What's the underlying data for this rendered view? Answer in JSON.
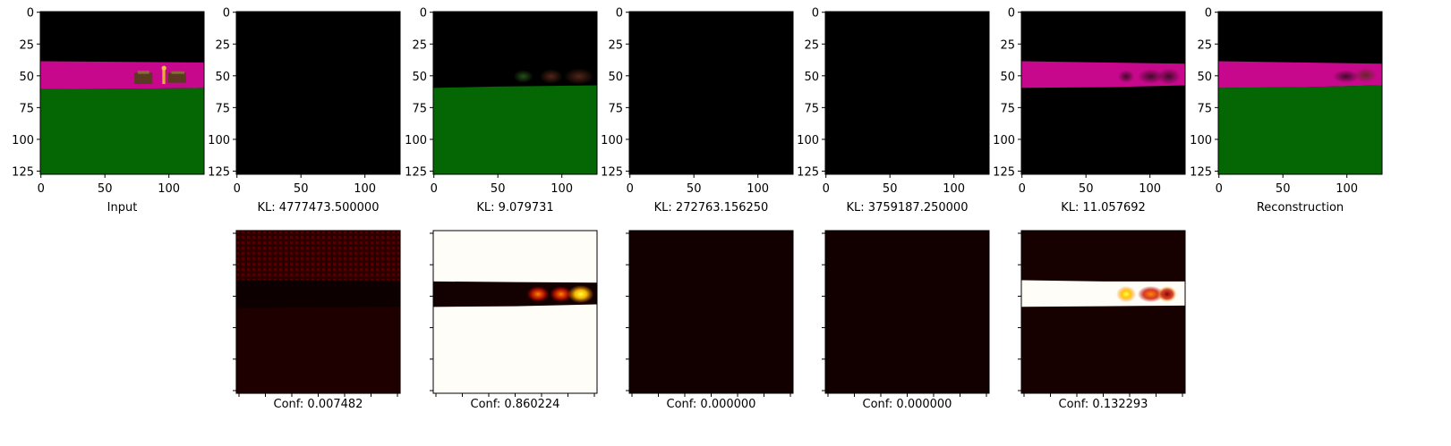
{
  "figure": {
    "top_row_tick_values": [
      0,
      25,
      50,
      75,
      100,
      125
    ],
    "top_row_x_tick_values": [
      0,
      50,
      100
    ],
    "image_extent": [
      -0.5,
      127.5
    ]
  },
  "panels_top": [
    {
      "id": "input",
      "label": "Input",
      "scene": "full"
    },
    {
      "id": "slot1",
      "label": "KL: 4777473.500000",
      "scene": "black"
    },
    {
      "id": "slot2",
      "label": "KL: 9.079731",
      "scene": "green_only"
    },
    {
      "id": "slot3",
      "label": "KL: 272763.156250",
      "scene": "black"
    },
    {
      "id": "slot4",
      "label": "KL: 3759187.250000",
      "scene": "black"
    },
    {
      "id": "slot5",
      "label": "KL: 11.057692",
      "scene": "band_only"
    },
    {
      "id": "reconstruction",
      "label": "Reconstruction",
      "scene": "recon"
    }
  ],
  "panels_bottom": [
    {
      "id": "conf1",
      "label": "Conf: 0.007482",
      "scene": "heat_dim"
    },
    {
      "id": "conf2",
      "label": "Conf: 0.860224",
      "scene": "heat_inverse"
    },
    {
      "id": "conf3",
      "label": "Conf: 0.000000",
      "scene": "heat_zero"
    },
    {
      "id": "conf4",
      "label": "Conf: 0.000000",
      "scene": "heat_zero"
    },
    {
      "id": "conf5",
      "label": "Conf: 0.132293",
      "scene": "heat_band"
    }
  ],
  "colors": {
    "magenta_band": "#c8088c",
    "green_floor": "#046704",
    "black": "#000000",
    "heat_dark": "#130000",
    "heat_white": "#fffdf8"
  },
  "chart_data": [
    {
      "type": "image",
      "title": "",
      "xlabel": "Input",
      "xlim": [
        0,
        127
      ],
      "ylim": [
        127,
        0
      ]
    },
    {
      "type": "image",
      "title": "",
      "xlabel": "KL: 4777473.500000",
      "xlim": [
        0,
        127
      ],
      "ylim": [
        127,
        0
      ]
    },
    {
      "type": "image",
      "title": "",
      "xlabel": "KL: 9.079731",
      "xlim": [
        0,
        127
      ],
      "ylim": [
        127,
        0
      ]
    },
    {
      "type": "image",
      "title": "",
      "xlabel": "KL: 272763.156250",
      "xlim": [
        0,
        127
      ],
      "ylim": [
        127,
        0
      ]
    },
    {
      "type": "image",
      "title": "",
      "xlabel": "KL: 3759187.250000",
      "xlim": [
        0,
        127
      ],
      "ylim": [
        127,
        0
      ]
    },
    {
      "type": "image",
      "title": "",
      "xlabel": "KL: 11.057692",
      "xlim": [
        0,
        127
      ],
      "ylim": [
        127,
        0
      ]
    },
    {
      "type": "image",
      "title": "",
      "xlabel": "Reconstruction",
      "xlim": [
        0,
        127
      ],
      "ylim": [
        127,
        0
      ]
    },
    {
      "type": "heatmap",
      "title": "",
      "xlabel": "Conf: 0.007482"
    },
    {
      "type": "heatmap",
      "title": "",
      "xlabel": "Conf: 0.860224"
    },
    {
      "type": "heatmap",
      "title": "",
      "xlabel": "Conf: 0.000000"
    },
    {
      "type": "heatmap",
      "title": "",
      "xlabel": "Conf: 0.000000"
    },
    {
      "type": "heatmap",
      "title": "",
      "xlabel": "Conf: 0.132293"
    }
  ]
}
